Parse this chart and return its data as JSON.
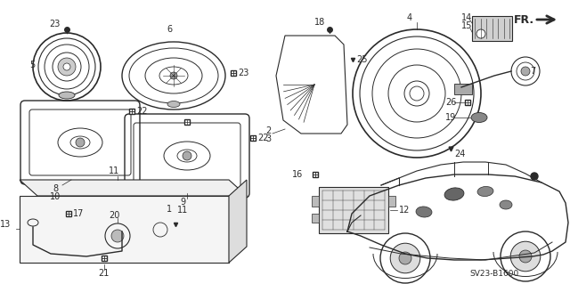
{
  "bg_color": "#ffffff",
  "fig_width": 6.4,
  "fig_height": 3.19,
  "dpi": 100,
  "code": "SV23-B1600",
  "gray": "#2a2a2a",
  "lgray": "#888888"
}
